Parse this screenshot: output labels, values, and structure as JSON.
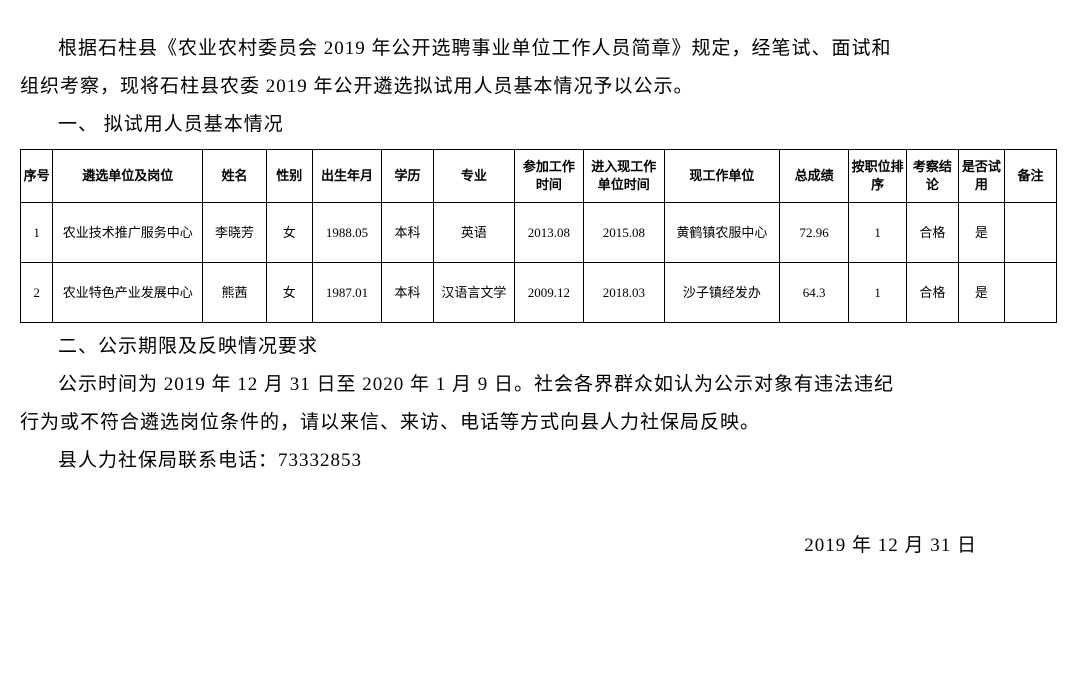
{
  "paragraphs": {
    "p1_part1": "根据石柱县《农业农村委员会 2019 年公开选聘事业单位工作人员简章》规定，经笔试、面试和",
    "p1_part2": "组织考察，现将石柱县农委 2019 年公开遴选拟试用人员基本情况予以公示。",
    "section1": "一、 拟试用人员基本情况",
    "section2": "二、公示期限及反映情况要求",
    "p2_part1": "公示时间为 2019 年 12 月 31 日至 2020 年 1 月 9 日。社会各界群众如认为公示对象有违法违纪",
    "p2_part2": "行为或不符合遴选岗位条件的，请以来信、来访、电话等方式向县人力社保局反映。",
    "p3": "县人力社保局联系电话：73332853",
    "date": "2019 年 12 月 31 日"
  },
  "table": {
    "headers": {
      "seq": "序号",
      "unit": "遴选单位及岗位",
      "name": "姓名",
      "gender": "性别",
      "birth": "出生年月",
      "edu": "学历",
      "major": "专业",
      "worktime": "参加工作时间",
      "currenttime": "进入现工作单位时间",
      "currentunit": "现工作单位",
      "score": "总成绩",
      "rank": "按职位排序",
      "result": "考察结论",
      "trial": "是否试用",
      "remark": "备注"
    },
    "rows": [
      {
        "seq": "1",
        "unit": "农业技术推广服务中心",
        "name": "李晓芳",
        "gender": "女",
        "birth": "1988.05",
        "edu": "本科",
        "major": "英语",
        "worktime": "2013.08",
        "currenttime": "2015.08",
        "currentunit": "黄鹤镇农服中心",
        "score": "72.96",
        "rank": "1",
        "result": "合格",
        "trial": "是",
        "remark": ""
      },
      {
        "seq": "2",
        "unit": "农业特色产业发展中心",
        "name": "熊茜",
        "gender": "女",
        "birth": "1987.01",
        "edu": "本科",
        "major": "汉语言文学",
        "worktime": "2009.12",
        "currenttime": "2018.03",
        "currentunit": "沙子镇经发办",
        "score": "64.3",
        "rank": "1",
        "result": "合格",
        "trial": "是",
        "remark": ""
      }
    ]
  },
  "styling": {
    "background_color": "#ffffff",
    "text_color": "#000000",
    "border_color": "#000000",
    "body_fontsize": 19,
    "table_fontsize": 13,
    "font_family": "SimSun"
  }
}
